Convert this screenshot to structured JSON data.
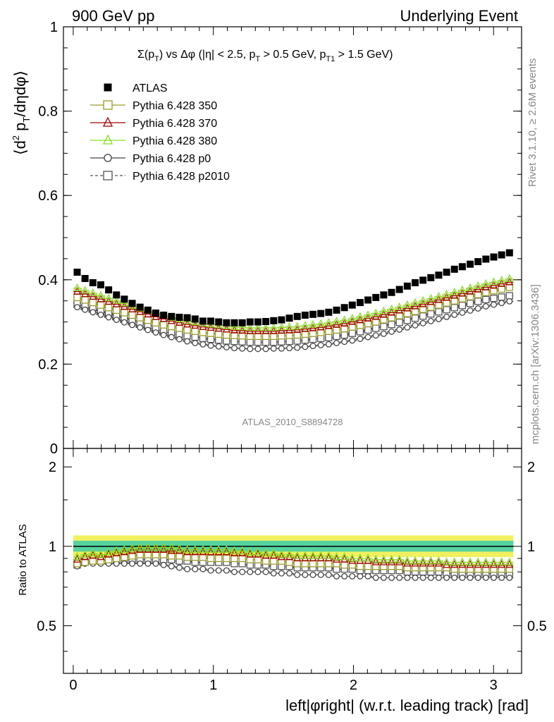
{
  "header": {
    "left": "900 GeV pp",
    "right": "Underlying Event",
    "inner_title": "Σ(pT) vs Δφ (|η| < 2.5, pT > 0.5 GeV, pT1 > 1.5 GeV)",
    "ylabel_main": "⟨d² pT/dηdφ⟩",
    "ylabel_ratio": "Ratio to ATLAS",
    "xlabel": "left|φright| (w.r.t. leading track) [rad]",
    "side_rivet": "Rivet 3.1.10, ≥ 2.6M events",
    "side_mcplots": "mcplots.cern.ch [arXiv:1306.3436]",
    "analysis_id": "ATLAS_2010_S8894728"
  },
  "chart_data": [
    {
      "type": "scatter",
      "panel": "main",
      "xlim": [
        -0.07,
        3.2
      ],
      "ylim": [
        0,
        1
      ],
      "x_ticks": [
        "0",
        "1",
        "2",
        "3"
      ],
      "y_ticks": [
        "0",
        "0.2",
        "0.4",
        "0.6",
        "0.8",
        "1"
      ],
      "legend_placement": "top-left",
      "series": [
        {
          "name": "ATLAS",
          "color": "#000000",
          "marker": "filled-square",
          "line": "none",
          "values": [
            0.418,
            0.403,
            0.393,
            0.388,
            0.376,
            0.364,
            0.354,
            0.344,
            0.335,
            0.328,
            0.321,
            0.316,
            0.313,
            0.311,
            0.31,
            0.307,
            0.302,
            0.302,
            0.3,
            0.298,
            0.298,
            0.298,
            0.3,
            0.3,
            0.301,
            0.303,
            0.305,
            0.309,
            0.313,
            0.316,
            0.318,
            0.32,
            0.323,
            0.328,
            0.334,
            0.34,
            0.346,
            0.352,
            0.358,
            0.364,
            0.37,
            0.377,
            0.385,
            0.393,
            0.399,
            0.405,
            0.411,
            0.418,
            0.425,
            0.431,
            0.437,
            0.443,
            0.449,
            0.454,
            0.459,
            0.464
          ]
        },
        {
          "name": "Pythia 6.428 350",
          "color": "#9a9a2a",
          "marker": "open-square",
          "line": "solid",
          "values": [
            0.358,
            0.352,
            0.346,
            0.34,
            0.334,
            0.328,
            0.322,
            0.316,
            0.31,
            0.304,
            0.298,
            0.293,
            0.289,
            0.285,
            0.281,
            0.278,
            0.275,
            0.273,
            0.271,
            0.269,
            0.268,
            0.267,
            0.266,
            0.266,
            0.266,
            0.266,
            0.267,
            0.268,
            0.269,
            0.271,
            0.273,
            0.275,
            0.278,
            0.281,
            0.284,
            0.288,
            0.292,
            0.296,
            0.3,
            0.305,
            0.31,
            0.315,
            0.32,
            0.325,
            0.33,
            0.335,
            0.34,
            0.345,
            0.35,
            0.355,
            0.36,
            0.365,
            0.37,
            0.374,
            0.378,
            0.382
          ]
        },
        {
          "name": "Pythia 6.428 370",
          "color": "#a00000",
          "marker": "open-triangle",
          "line": "solid",
          "values": [
            0.372,
            0.366,
            0.36,
            0.354,
            0.348,
            0.342,
            0.336,
            0.33,
            0.324,
            0.318,
            0.312,
            0.307,
            0.302,
            0.298,
            0.294,
            0.291,
            0.288,
            0.286,
            0.284,
            0.282,
            0.28,
            0.279,
            0.278,
            0.278,
            0.278,
            0.278,
            0.279,
            0.28,
            0.281,
            0.283,
            0.285,
            0.287,
            0.29,
            0.293,
            0.296,
            0.3,
            0.304,
            0.308,
            0.312,
            0.317,
            0.322,
            0.327,
            0.332,
            0.337,
            0.342,
            0.347,
            0.352,
            0.357,
            0.362,
            0.367,
            0.372,
            0.377,
            0.382,
            0.386,
            0.39,
            0.394
          ]
        },
        {
          "name": "Pythia 6.428 380",
          "color": "#88dd22",
          "marker": "open-triangle",
          "line": "solid",
          "values": [
            0.38,
            0.374,
            0.368,
            0.362,
            0.356,
            0.35,
            0.344,
            0.338,
            0.332,
            0.326,
            0.32,
            0.315,
            0.31,
            0.306,
            0.302,
            0.299,
            0.296,
            0.294,
            0.292,
            0.29,
            0.288,
            0.287,
            0.286,
            0.286,
            0.286,
            0.286,
            0.287,
            0.288,
            0.289,
            0.291,
            0.293,
            0.295,
            0.298,
            0.301,
            0.304,
            0.308,
            0.312,
            0.316,
            0.32,
            0.325,
            0.33,
            0.335,
            0.34,
            0.345,
            0.35,
            0.355,
            0.36,
            0.365,
            0.37,
            0.375,
            0.38,
            0.385,
            0.39,
            0.394,
            0.398,
            0.402
          ]
        },
        {
          "name": "Pythia 6.428 p0",
          "color": "#444444",
          "marker": "open-circle",
          "line": "solid",
          "values": [
            0.335,
            0.329,
            0.323,
            0.317,
            0.311,
            0.305,
            0.299,
            0.293,
            0.287,
            0.281,
            0.275,
            0.269,
            0.264,
            0.259,
            0.254,
            0.25,
            0.247,
            0.244,
            0.242,
            0.24,
            0.238,
            0.237,
            0.236,
            0.236,
            0.236,
            0.237,
            0.237,
            0.238,
            0.239,
            0.241,
            0.243,
            0.245,
            0.247,
            0.25,
            0.253,
            0.256,
            0.26,
            0.264,
            0.268,
            0.272,
            0.277,
            0.282,
            0.287,
            0.292,
            0.297,
            0.302,
            0.307,
            0.312,
            0.317,
            0.322,
            0.327,
            0.332,
            0.337,
            0.341,
            0.345,
            0.349
          ]
        },
        {
          "name": "Pythia 6.428 p2010",
          "color": "#555555",
          "marker": "open-square",
          "line": "dashed",
          "values": [
            0.345,
            0.339,
            0.333,
            0.327,
            0.321,
            0.315,
            0.309,
            0.303,
            0.297,
            0.291,
            0.285,
            0.28,
            0.275,
            0.271,
            0.267,
            0.264,
            0.261,
            0.259,
            0.257,
            0.255,
            0.254,
            0.253,
            0.252,
            0.252,
            0.252,
            0.252,
            0.253,
            0.254,
            0.255,
            0.257,
            0.259,
            0.261,
            0.263,
            0.266,
            0.269,
            0.273,
            0.277,
            0.281,
            0.285,
            0.289,
            0.294,
            0.299,
            0.304,
            0.309,
            0.314,
            0.319,
            0.324,
            0.329,
            0.334,
            0.339,
            0.344,
            0.349,
            0.353,
            0.356,
            0.359,
            0.362
          ]
        }
      ]
    },
    {
      "type": "scatter",
      "panel": "ratio",
      "xlim": [
        -0.07,
        3.2
      ],
      "ylim": [
        0.33,
        2.35
      ],
      "y_scale": "log",
      "y_ticks": [
        "0.5",
        "1",
        "2"
      ],
      "x_ticks": [
        "0",
        "1",
        "2",
        "3"
      ],
      "band_color": "#55d2a0",
      "band_outer_color": "#f0f060",
      "series": [
        {
          "name": "Pythia 6.428 350",
          "values": [
            0.86,
            0.87,
            0.88,
            0.88,
            0.89,
            0.9,
            0.91,
            0.92,
            0.93,
            0.93,
            0.93,
            0.93,
            0.92,
            0.92,
            0.91,
            0.91,
            0.91,
            0.9,
            0.9,
            0.9,
            0.9,
            0.9,
            0.89,
            0.89,
            0.88,
            0.88,
            0.88,
            0.87,
            0.86,
            0.86,
            0.86,
            0.86,
            0.86,
            0.86,
            0.85,
            0.85,
            0.84,
            0.84,
            0.84,
            0.84,
            0.84,
            0.84,
            0.83,
            0.83,
            0.83,
            0.83,
            0.83,
            0.83,
            0.82,
            0.82,
            0.82,
            0.82,
            0.82,
            0.82,
            0.82,
            0.82
          ]
        },
        {
          "name": "Pythia 6.428 370",
          "values": [
            0.89,
            0.91,
            0.92,
            0.91,
            0.93,
            0.94,
            0.95,
            0.96,
            0.97,
            0.97,
            0.97,
            0.97,
            0.96,
            0.96,
            0.95,
            0.95,
            0.95,
            0.95,
            0.95,
            0.95,
            0.94,
            0.94,
            0.93,
            0.93,
            0.92,
            0.92,
            0.91,
            0.91,
            0.9,
            0.9,
            0.9,
            0.9,
            0.9,
            0.89,
            0.89,
            0.88,
            0.88,
            0.88,
            0.87,
            0.87,
            0.87,
            0.87,
            0.86,
            0.86,
            0.86,
            0.86,
            0.86,
            0.85,
            0.85,
            0.85,
            0.85,
            0.85,
            0.85,
            0.85,
            0.85,
            0.85
          ]
        },
        {
          "name": "Pythia 6.428 380",
          "values": [
            0.91,
            0.93,
            0.94,
            0.93,
            0.95,
            0.96,
            0.97,
            0.98,
            0.99,
            0.99,
            0.99,
            0.99,
            0.99,
            0.98,
            0.97,
            0.97,
            0.97,
            0.97,
            0.97,
            0.97,
            0.96,
            0.96,
            0.95,
            0.95,
            0.94,
            0.94,
            0.93,
            0.93,
            0.92,
            0.92,
            0.92,
            0.92,
            0.92,
            0.91,
            0.91,
            0.9,
            0.9,
            0.9,
            0.89,
            0.89,
            0.89,
            0.89,
            0.88,
            0.88,
            0.88,
            0.88,
            0.88,
            0.87,
            0.87,
            0.87,
            0.87,
            0.87,
            0.87,
            0.87,
            0.87,
            0.87
          ]
        },
        {
          "name": "Pythia 6.428 p0",
          "values": [
            0.84,
            0.86,
            0.86,
            0.86,
            0.86,
            0.86,
            0.86,
            0.86,
            0.86,
            0.86,
            0.86,
            0.85,
            0.84,
            0.83,
            0.82,
            0.82,
            0.82,
            0.81,
            0.81,
            0.81,
            0.8,
            0.8,
            0.8,
            0.8,
            0.8,
            0.79,
            0.79,
            0.79,
            0.78,
            0.78,
            0.78,
            0.78,
            0.78,
            0.77,
            0.77,
            0.77,
            0.77,
            0.77,
            0.76,
            0.76,
            0.76,
            0.76,
            0.76,
            0.76,
            0.76,
            0.76,
            0.76,
            0.76,
            0.76,
            0.76,
            0.76,
            0.76,
            0.76,
            0.76,
            0.76,
            0.76
          ]
        },
        {
          "name": "Pythia 6.428 p2010",
          "values": [
            0.85,
            0.87,
            0.88,
            0.88,
            0.88,
            0.89,
            0.89,
            0.89,
            0.89,
            0.89,
            0.89,
            0.89,
            0.89,
            0.88,
            0.88,
            0.87,
            0.87,
            0.87,
            0.87,
            0.87,
            0.86,
            0.86,
            0.85,
            0.85,
            0.85,
            0.84,
            0.84,
            0.84,
            0.83,
            0.83,
            0.83,
            0.83,
            0.83,
            0.82,
            0.82,
            0.82,
            0.81,
            0.81,
            0.81,
            0.81,
            0.81,
            0.81,
            0.8,
            0.8,
            0.8,
            0.8,
            0.8,
            0.79,
            0.79,
            0.79,
            0.79,
            0.79,
            0.79,
            0.79,
            0.79,
            0.79
          ]
        }
      ]
    }
  ]
}
